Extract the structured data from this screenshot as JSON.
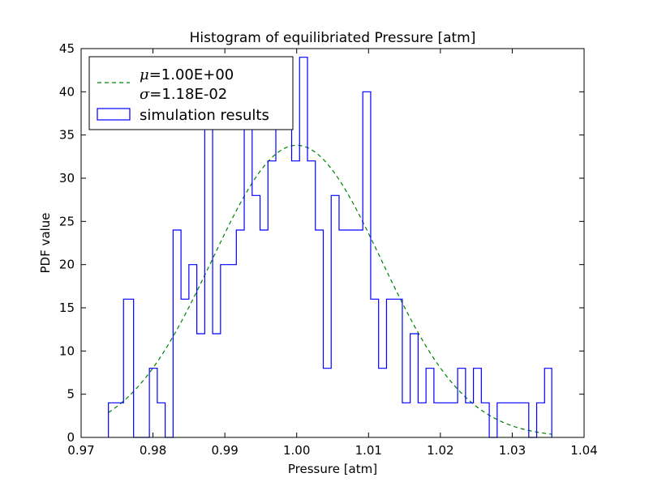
{
  "chart_data": {
    "type": "histogram",
    "title": "Histogram of equilibriated Pressure [atm]",
    "xlabel": "Pressure [atm]",
    "ylabel": "PDF value",
    "xlim": [
      0.97,
      1.04
    ],
    "ylim": [
      0,
      45
    ],
    "xticks": [
      "0.97",
      "0.98",
      "0.99",
      "1.00",
      "1.01",
      "1.02",
      "1.03",
      "1.04"
    ],
    "yticks": [
      "0",
      "5",
      "10",
      "15",
      "20",
      "25",
      "30",
      "35",
      "40",
      "45"
    ],
    "grid": false,
    "legend_position": "top-left",
    "colors": {
      "histogram": "#0000ff",
      "fit": "#008000"
    },
    "fit_curve": {
      "mean": 1.0,
      "std": 0.0118,
      "legend_mu": "=1.00E+00",
      "legend_sigma": "=1.18E-02",
      "line_style": "dashed",
      "x_range": [
        0.9738,
        1.0355
      ]
    },
    "histogram": {
      "name": "simulation results",
      "bin_edges": [
        0.9738,
        0.9759,
        0.9773,
        0.9784,
        0.9795,
        0.9806,
        0.9817,
        0.9828,
        0.9839,
        0.985,
        0.9861,
        0.9872,
        0.9883,
        0.9894,
        0.9905,
        0.9916,
        0.9927,
        0.9938,
        0.9949,
        0.996,
        0.9971,
        0.9982,
        0.9993,
        1.0004,
        1.0015,
        1.0026,
        1.0037,
        1.0048,
        1.0059,
        1.007,
        1.0081,
        1.0092,
        1.0103,
        1.0114,
        1.0125,
        1.0136,
        1.0147,
        1.0158,
        1.0169,
        1.018,
        1.0191,
        1.0202,
        1.0213,
        1.0224,
        1.0235,
        1.0246,
        1.0257,
        1.0268,
        1.0279,
        1.029,
        1.0301,
        1.0312,
        1.0323,
        1.0334,
        1.0345,
        1.0355
      ],
      "values": [
        4,
        16,
        0,
        0,
        8,
        4,
        0,
        24,
        16,
        20,
        12,
        36,
        12,
        20,
        20,
        24,
        36,
        28,
        24,
        32,
        36,
        40,
        32,
        44,
        32,
        24,
        8,
        28,
        24,
        24,
        24,
        40,
        16,
        8,
        16,
        16,
        4,
        12,
        4,
        8,
        4,
        4,
        4,
        8,
        4,
        8,
        4,
        0,
        4,
        4,
        4,
        4,
        0,
        4,
        8
      ]
    }
  }
}
